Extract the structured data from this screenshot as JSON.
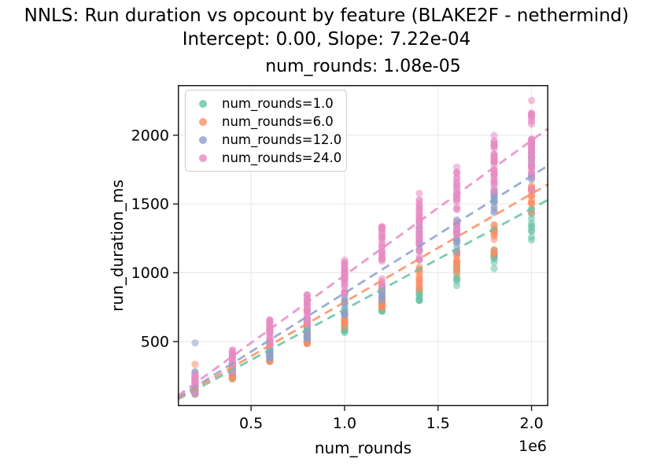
{
  "figure": {
    "suptitle_line1": "NNLS: Run duration vs opcount by feature (BLAKE2F - nethermind)",
    "suptitle_line2": "Intercept: 0.00, Slope: 7.22e-04",
    "axes_title": "num_rounds: 1.08e-05",
    "background_color": "#ffffff",
    "spine_color": "#1a1a1a",
    "grid_color": "#e7e7e7",
    "text_color": "#000000"
  },
  "legend": {
    "items": [
      {
        "label": "num_rounds=1.0",
        "color": "#66c2a5"
      },
      {
        "label": "num_rounds=6.0",
        "color": "#fc8d62"
      },
      {
        "label": "num_rounds=12.0",
        "color": "#8da0cb"
      },
      {
        "label": "num_rounds=24.0",
        "color": "#e78ac3"
      }
    ]
  },
  "chart_data": {
    "type": "scatter",
    "title": "num_rounds: 1.08e-05",
    "suptitle": "NNLS: Run duration vs opcount by feature (BLAKE2F - nethermind)",
    "subtitle": "Intercept: 0.00, Slope: 7.22e-04",
    "xlabel": "num_rounds",
    "ylabel": "run_duration_ms",
    "x_offset_label": "1e6",
    "xlim": [
      108000,
      2090000
    ],
    "ylim": [
      30,
      2365
    ],
    "xticks": [
      500000,
      1000000,
      1500000,
      2000000
    ],
    "xtick_labels": [
      "0.5",
      "1.0",
      "1.5",
      "2.0"
    ],
    "yticks": [
      500,
      1000,
      1500,
      2000
    ],
    "ytick_labels": [
      "500",
      "1000",
      "1500",
      "2000"
    ],
    "grid": true,
    "legend_position": "upper-left",
    "regression_model": {
      "intercept": 0.0,
      "slope": 0.000722,
      "num_rounds_coef": 1.08e-05
    },
    "x_values": [
      200000,
      400000,
      600000,
      800000,
      1000000,
      1200000,
      1400000,
      1600000,
      1800000,
      2000000
    ],
    "series": [
      {
        "label": "num_rounds=1.0",
        "num_rounds": 1.0,
        "color": "#66c2a5",
        "line": {
          "intercept": 0,
          "slope": 0.000733
        },
        "clusters": [
          {
            "x": 200000,
            "min": 115,
            "max": 175,
            "n": 12
          },
          {
            "x": 400000,
            "min": 230,
            "max": 298,
            "n": 12
          },
          {
            "x": 600000,
            "min": 355,
            "max": 430,
            "n": 12
          },
          {
            "x": 800000,
            "min": 488,
            "max": 580,
            "n": 12
          },
          {
            "x": 1000000,
            "min": 565,
            "max": 628,
            "n": 12
          },
          {
            "x": 1200000,
            "min": 718,
            "max": 800,
            "n": 12
          },
          {
            "x": 1400000,
            "min": 798,
            "max": 882,
            "n": 10
          },
          {
            "x": 1600000,
            "min": 938,
            "max": 1052,
            "n": 10
          },
          {
            "x": 1800000,
            "min": 1075,
            "max": 1165,
            "n": 10
          },
          {
            "x": 2000000,
            "min": 1238,
            "max": 1462,
            "n": 12
          }
        ],
        "outliers": [
          [
            1600000,
            906
          ],
          [
            1800000,
            1030
          ]
        ]
      },
      {
        "label": "num_rounds=6.0",
        "num_rounds": 6.0,
        "color": "#fc8d62",
        "line": {
          "intercept": 0,
          "slope": 0.000787
        },
        "clusters": [
          {
            "x": 200000,
            "min": 118,
            "max": 232,
            "n": 14
          },
          {
            "x": 400000,
            "min": 228,
            "max": 302,
            "n": 14
          },
          {
            "x": 600000,
            "min": 356,
            "max": 442,
            "n": 14
          },
          {
            "x": 800000,
            "min": 484,
            "max": 562,
            "n": 14
          },
          {
            "x": 1000000,
            "min": 606,
            "max": 700,
            "n": 14
          },
          {
            "x": 1200000,
            "min": 744,
            "max": 820,
            "n": 14
          },
          {
            "x": 1400000,
            "min": 878,
            "max": 1042,
            "n": 14
          },
          {
            "x": 1600000,
            "min": 998,
            "max": 1156,
            "n": 14
          },
          {
            "x": 1800000,
            "min": 1132,
            "max": 1348,
            "n": 14
          },
          {
            "x": 2000000,
            "min": 1438,
            "max": 1632,
            "n": 14
          }
        ],
        "outliers": [
          [
            200000,
            334
          ]
        ]
      },
      {
        "label": "num_rounds=12.0",
        "num_rounds": 12.0,
        "color": "#8da0cb",
        "line": {
          "intercept": 0,
          "slope": 0.000852
        },
        "clusters": [
          {
            "x": 200000,
            "min": 124,
            "max": 282,
            "n": 16
          },
          {
            "x": 400000,
            "min": 278,
            "max": 352,
            "n": 16
          },
          {
            "x": 600000,
            "min": 380,
            "max": 490,
            "n": 16
          },
          {
            "x": 800000,
            "min": 518,
            "max": 640,
            "n": 16
          },
          {
            "x": 1000000,
            "min": 692,
            "max": 852,
            "n": 16
          },
          {
            "x": 1200000,
            "min": 798,
            "max": 902,
            "n": 16
          },
          {
            "x": 1400000,
            "min": 1092,
            "max": 1332,
            "n": 16
          },
          {
            "x": 1600000,
            "min": 1148,
            "max": 1385,
            "n": 16
          },
          {
            "x": 1800000,
            "min": 1436,
            "max": 1602,
            "n": 16
          },
          {
            "x": 2000000,
            "min": 1678,
            "max": 1912,
            "n": 16
          }
        ],
        "outliers": [
          [
            200000,
            490
          ]
        ]
      },
      {
        "label": "num_rounds=24.0",
        "num_rounds": 24.0,
        "color": "#e78ac3",
        "line": {
          "intercept": 0,
          "slope": 0.000981
        },
        "clusters": [
          {
            "x": 200000,
            "min": 130,
            "max": 262,
            "n": 22
          },
          {
            "x": 400000,
            "min": 288,
            "max": 438,
            "n": 26
          },
          {
            "x": 600000,
            "min": 468,
            "max": 660,
            "n": 30
          },
          {
            "x": 800000,
            "min": 618,
            "max": 840,
            "n": 32
          },
          {
            "x": 1000000,
            "min": 846,
            "max": 1092,
            "n": 34
          },
          {
            "x": 1200000,
            "min": 884,
            "max": 1336,
            "n": 36
          },
          {
            "x": 1400000,
            "min": 1094,
            "max": 1532,
            "n": 36
          },
          {
            "x": 1600000,
            "min": 1282,
            "max": 1732,
            "n": 36
          },
          {
            "x": 1800000,
            "min": 1590,
            "max": 1958,
            "n": 36
          },
          {
            "x": 2000000,
            "min": 1600,
            "max": 2162,
            "n": 38
          }
        ],
        "outliers": [
          [
            1400000,
            1578
          ],
          [
            1600000,
            1768
          ],
          [
            1800000,
            1998
          ],
          [
            2000000,
            2252
          ]
        ]
      }
    ]
  }
}
